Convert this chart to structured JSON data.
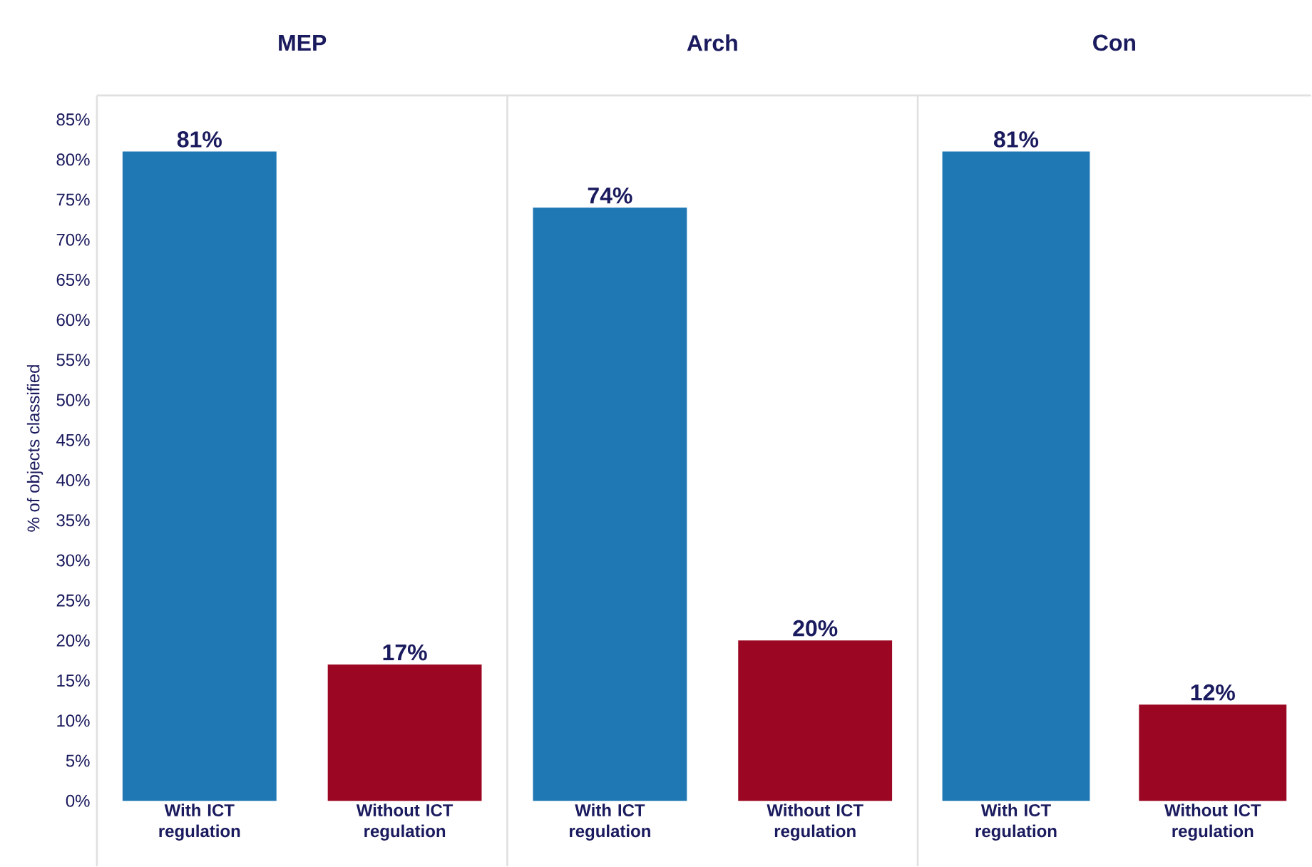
{
  "chart_data": [
    {
      "type": "bar",
      "title": "MEP",
      "ylabel": "% of objects classified",
      "categories": [
        "With ICT regulation",
        "Without ICT regulation"
      ],
      "values": [
        81,
        17
      ],
      "colors": [
        "#1f77b4",
        "#9b0722"
      ],
      "value_labels": [
        "81%",
        "17%"
      ],
      "ylim": [
        0,
        88
      ],
      "yticks": [
        {
          "value": 0,
          "label": "0%"
        },
        {
          "value": 5,
          "label": "5%"
        },
        {
          "value": 10,
          "label": "10%"
        },
        {
          "value": 15,
          "label": "15%"
        },
        {
          "value": 20,
          "label": "20%"
        },
        {
          "value": 25,
          "label": "25%"
        },
        {
          "value": 30,
          "label": "30%"
        },
        {
          "value": 35,
          "label": "35%"
        },
        {
          "value": 40,
          "label": "40%"
        },
        {
          "value": 45,
          "label": "45%"
        },
        {
          "value": 50,
          "label": "50%"
        },
        {
          "value": 55,
          "label": "55%"
        },
        {
          "value": 60,
          "label": "60%"
        },
        {
          "value": 65,
          "label": "65%"
        },
        {
          "value": 70,
          "label": "70%"
        },
        {
          "value": 75,
          "label": "75%"
        },
        {
          "value": 80,
          "label": "80%"
        },
        {
          "value": 85,
          "label": "85%"
        }
      ],
      "grid": false
    },
    {
      "type": "bar",
      "title": "Arch",
      "categories": [
        "With ICT regulation",
        "Without ICT regulation"
      ],
      "values": [
        74,
        20
      ],
      "colors": [
        "#1f77b4",
        "#9b0722"
      ],
      "value_labels": [
        "74%",
        "20%"
      ],
      "ylim": [
        0,
        88
      ],
      "tick_labels": "x",
      "grid": false
    },
    {
      "type": "bar",
      "title": "Con",
      "categories": [
        "With ICT regulation",
        "Without ICT regulation"
      ],
      "values": [
        81,
        12
      ],
      "colors": [
        "#1f77b4",
        "#9b0722"
      ],
      "value_labels": [
        "81%",
        "12%"
      ],
      "ylim": [
        0,
        88
      ],
      "tick_labels": "x",
      "grid": false
    }
  ]
}
